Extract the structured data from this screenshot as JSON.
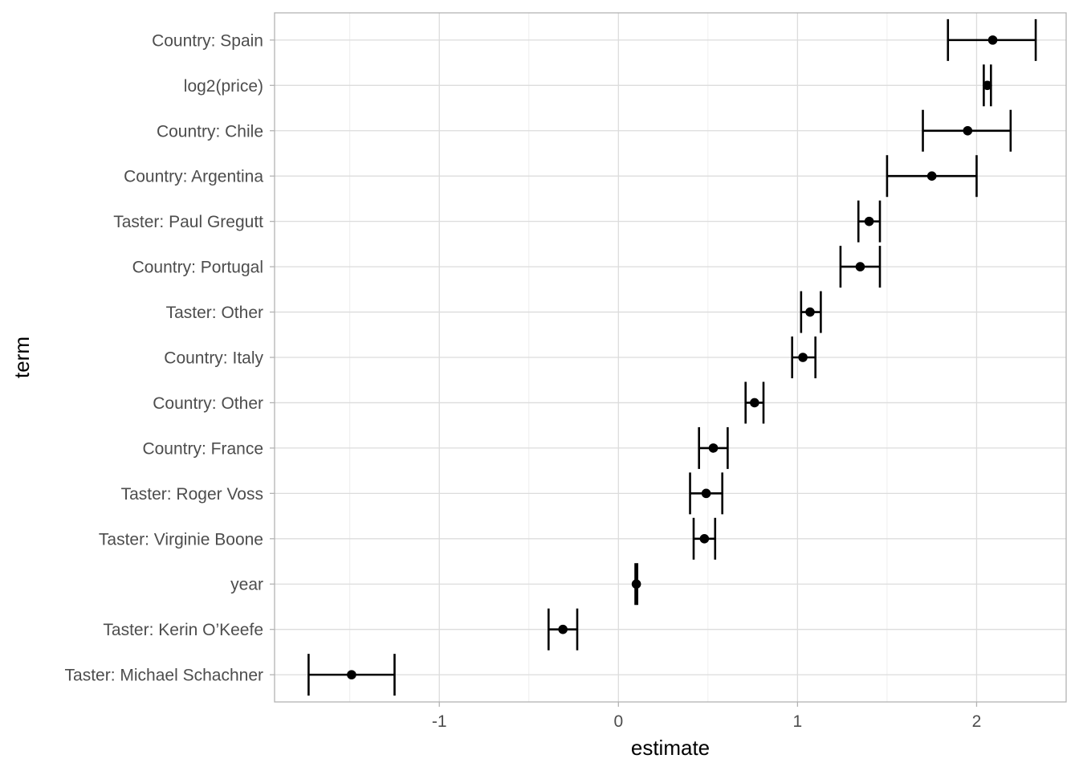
{
  "chart_data": {
    "type": "scatter",
    "subtype": "point-errorbar",
    "title": "",
    "xlabel": "estimate",
    "ylabel": "term",
    "xlim": [
      -1.92,
      2.5
    ],
    "xticks": [
      -1,
      0,
      1,
      2
    ],
    "xtick_labels": [
      "-1",
      "0",
      "1",
      "2"
    ],
    "grid": true,
    "legend": "none",
    "colors": {
      "mark": "#000000",
      "grid": "#dcdcdc",
      "panel_border": "#b3b3b3",
      "tick_text": "#4d4d4d"
    },
    "terms": [
      {
        "term": "Country: Spain",
        "estimate": 2.09,
        "low": 1.84,
        "high": 2.33
      },
      {
        "term": "log2(price)",
        "estimate": 2.06,
        "low": 2.04,
        "high": 2.08
      },
      {
        "term": "Country: Chile",
        "estimate": 1.95,
        "low": 1.7,
        "high": 2.19
      },
      {
        "term": "Country: Argentina",
        "estimate": 1.75,
        "low": 1.5,
        "high": 2.0
      },
      {
        "term": "Taster: Paul Gregutt",
        "estimate": 1.4,
        "low": 1.34,
        "high": 1.46
      },
      {
        "term": "Country: Portugal",
        "estimate": 1.35,
        "low": 1.24,
        "high": 1.46
      },
      {
        "term": "Taster: Other",
        "estimate": 1.07,
        "low": 1.02,
        "high": 1.13
      },
      {
        "term": "Country: Italy",
        "estimate": 1.03,
        "low": 0.97,
        "high": 1.1
      },
      {
        "term": "Country: Other",
        "estimate": 0.76,
        "low": 0.71,
        "high": 0.81
      },
      {
        "term": "Country: France",
        "estimate": 0.53,
        "low": 0.45,
        "high": 0.61
      },
      {
        "term": "Taster: Roger Voss",
        "estimate": 0.49,
        "low": 0.4,
        "high": 0.58
      },
      {
        "term": "Taster: Virginie Boone",
        "estimate": 0.48,
        "low": 0.42,
        "high": 0.54
      },
      {
        "term": "year",
        "estimate": 0.1,
        "low": 0.095,
        "high": 0.105
      },
      {
        "term": "Taster: Kerin O’Keefe",
        "estimate": -0.31,
        "low": -0.39,
        "high": -0.23
      },
      {
        "term": "Taster: Michael Schachner",
        "estimate": -1.49,
        "low": -1.73,
        "high": -1.25
      }
    ]
  }
}
